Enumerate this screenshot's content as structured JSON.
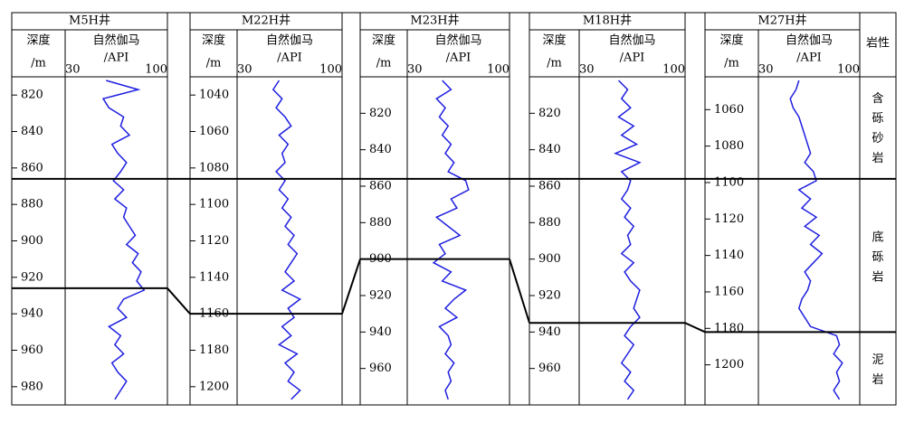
{
  "chart_data": {
    "type": "welllog",
    "depth_label": "深度",
    "depth_unit": "/m",
    "x_label": "自然伽马",
    "x_unit": "/API",
    "lithology_label": "岩性",
    "xlim": [
      30,
      100
    ],
    "xticks": [
      30,
      100
    ],
    "color": "#1f1fe0",
    "lithology": [
      "含砾砂岩",
      "底砾岩",
      "泥岩"
    ],
    "wells": [
      {
        "name": "M5H井",
        "ylim": [
          810,
          990
        ],
        "yticks": [
          820,
          840,
          860,
          880,
          900,
          920,
          940,
          960,
          980
        ],
        "boundaries": [
          866,
          926
        ],
        "depth": [
          812,
          817,
          822,
          827,
          832,
          837,
          842,
          847,
          852,
          857,
          862,
          867,
          872,
          877,
          882,
          887,
          892,
          897,
          902,
          907,
          912,
          917,
          922,
          927,
          932,
          937,
          942,
          947,
          952,
          957,
          962,
          967,
          972,
          977,
          982,
          987
        ],
        "values": [
          58,
          80,
          56,
          60,
          70,
          68,
          74,
          62,
          66,
          72,
          68,
          63,
          70,
          64,
          72,
          70,
          74,
          78,
          72,
          80,
          76,
          82,
          79,
          84,
          70,
          66,
          72,
          60,
          68,
          64,
          70,
          62,
          66,
          72,
          68,
          64
        ]
      },
      {
        "name": "M22H井",
        "ylim": [
          1030,
          1210
        ],
        "yticks": [
          1040,
          1060,
          1080,
          1100,
          1120,
          1140,
          1160,
          1180,
          1200
        ],
        "boundaries": [
          1086,
          1160
        ],
        "depth": [
          1032,
          1037,
          1042,
          1047,
          1052,
          1057,
          1062,
          1067,
          1072,
          1077,
          1082,
          1087,
          1092,
          1097,
          1102,
          1107,
          1112,
          1117,
          1122,
          1127,
          1132,
          1137,
          1142,
          1147,
          1152,
          1157,
          1162,
          1167,
          1172,
          1177,
          1182,
          1187,
          1192,
          1197,
          1202,
          1207
        ],
        "values": [
          58,
          54,
          60,
          56,
          62,
          66,
          58,
          64,
          60,
          62,
          56,
          62,
          58,
          64,
          60,
          66,
          62,
          68,
          64,
          70,
          66,
          62,
          68,
          60,
          72,
          64,
          68,
          60,
          66,
          58,
          70,
          62,
          68,
          64,
          72,
          66
        ]
      },
      {
        "name": "M23H井",
        "ylim": [
          800,
          980
        ],
        "yticks": [
          820,
          840,
          860,
          880,
          900,
          920,
          940,
          960
        ],
        "boundaries": [
          856,
          900
        ],
        "depth": [
          802,
          807,
          812,
          817,
          822,
          827,
          832,
          837,
          842,
          847,
          852,
          857,
          862,
          867,
          872,
          877,
          882,
          887,
          892,
          897,
          902,
          907,
          912,
          917,
          922,
          927,
          932,
          937,
          942,
          947,
          952,
          957,
          962,
          967,
          972,
          977
        ],
        "values": [
          54,
          60,
          50,
          56,
          52,
          58,
          54,
          60,
          56,
          62,
          58,
          70,
          72,
          60,
          64,
          50,
          58,
          66,
          52,
          56,
          48,
          60,
          54,
          70,
          62,
          56,
          64,
          52,
          58,
          60,
          56,
          62,
          58,
          60,
          56,
          58
        ]
      },
      {
        "name": "M18H井",
        "ylim": [
          800,
          980
        ],
        "yticks": [
          820,
          840,
          860,
          880,
          900,
          920,
          940,
          960
        ],
        "boundaries": [
          856,
          935
        ],
        "depth": [
          802,
          807,
          812,
          817,
          822,
          827,
          832,
          837,
          842,
          847,
          852,
          857,
          862,
          867,
          872,
          877,
          882,
          887,
          892,
          897,
          902,
          907,
          912,
          917,
          922,
          927,
          932,
          937,
          942,
          947,
          952,
          957,
          962,
          967,
          972,
          977
        ],
        "values": [
          56,
          62,
          58,
          64,
          56,
          66,
          58,
          68,
          54,
          70,
          58,
          64,
          62,
          58,
          64,
          60,
          66,
          62,
          64,
          58,
          66,
          60,
          64,
          70,
          68,
          66,
          70,
          64,
          60,
          66,
          62,
          58,
          64,
          60,
          66,
          62
        ]
      },
      {
        "name": "M27H井",
        "ylim": [
          1042,
          1222
        ],
        "yticks": [
          1060,
          1080,
          1100,
          1120,
          1140,
          1160,
          1180,
          1200
        ],
        "boundaries": [
          1098,
          1182
        ],
        "depth": [
          1044,
          1049,
          1054,
          1059,
          1064,
          1069,
          1074,
          1079,
          1084,
          1089,
          1094,
          1099,
          1104,
          1109,
          1114,
          1119,
          1124,
          1129,
          1134,
          1139,
          1144,
          1149,
          1154,
          1159,
          1164,
          1169,
          1174,
          1179,
          1184,
          1189,
          1194,
          1199,
          1204,
          1209,
          1214,
          1219
        ],
        "values": [
          58,
          56,
          52,
          54,
          58,
          60,
          62,
          64,
          66,
          62,
          68,
          70,
          58,
          66,
          60,
          70,
          62,
          72,
          66,
          74,
          68,
          62,
          66,
          64,
          60,
          58,
          62,
          66,
          84,
          86,
          82,
          88,
          84,
          86,
          82,
          86
        ]
      }
    ]
  }
}
